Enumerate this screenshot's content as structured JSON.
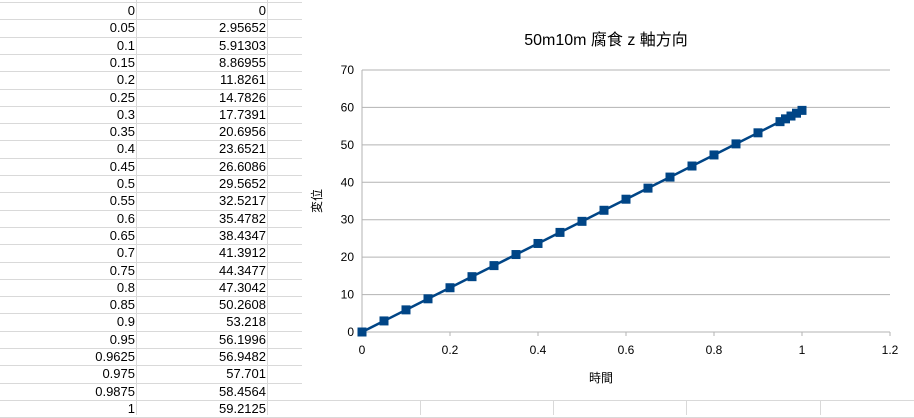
{
  "spreadsheet": {
    "rows": [
      [
        "0",
        "0"
      ],
      [
        "0.05",
        "2.95652"
      ],
      [
        "0.1",
        "5.91303"
      ],
      [
        "0.15",
        "8.86955"
      ],
      [
        "0.2",
        "11.8261"
      ],
      [
        "0.25",
        "14.7826"
      ],
      [
        "0.3",
        "17.7391"
      ],
      [
        "0.35",
        "20.6956"
      ],
      [
        "0.4",
        "23.6521"
      ],
      [
        "0.45",
        "26.6086"
      ],
      [
        "0.5",
        "29.5652"
      ],
      [
        "0.55",
        "32.5217"
      ],
      [
        "0.6",
        "35.4782"
      ],
      [
        "0.65",
        "38.4347"
      ],
      [
        "0.7",
        "41.3912"
      ],
      [
        "0.75",
        "44.3477"
      ],
      [
        "0.8",
        "47.3042"
      ],
      [
        "0.85",
        "50.2608"
      ],
      [
        "0.9",
        "53.218"
      ],
      [
        "0.95",
        "56.1996"
      ],
      [
        "0.9625",
        "56.9482"
      ],
      [
        "0.975",
        "57.701"
      ],
      [
        "0.9875",
        "58.4564"
      ],
      [
        "1",
        "59.2125"
      ]
    ]
  },
  "chart_data": {
    "type": "line",
    "title": "50m10m 腐食 z 軸方向",
    "xlabel": "時間",
    "ylabel": "変位",
    "xlim": [
      0,
      1.2
    ],
    "ylim": [
      0,
      70
    ],
    "xticks": [
      "0",
      "0.2",
      "0.4",
      "0.6",
      "0.8",
      "1",
      "1.2"
    ],
    "yticks": [
      "0",
      "10",
      "20",
      "30",
      "40",
      "50",
      "60",
      "70"
    ],
    "grid": "horizontal",
    "legend": "none",
    "marker": "square",
    "series": [
      {
        "color": "#004586",
        "x": [
          0,
          0.05,
          0.1,
          0.15,
          0.2,
          0.25,
          0.3,
          0.35,
          0.4,
          0.45,
          0.5,
          0.55,
          0.6,
          0.65,
          0.7,
          0.75,
          0.8,
          0.85,
          0.9,
          0.95,
          0.9625,
          0.975,
          0.9875,
          1
        ],
        "y": [
          0,
          2.95652,
          5.91303,
          8.86955,
          11.8261,
          14.7826,
          17.7391,
          20.6956,
          23.6521,
          26.6086,
          29.5652,
          32.5217,
          35.4782,
          38.4347,
          41.3912,
          44.3477,
          47.3042,
          50.2608,
          53.218,
          56.1996,
          56.9482,
          57.701,
          58.4564,
          59.2125
        ]
      }
    ]
  }
}
